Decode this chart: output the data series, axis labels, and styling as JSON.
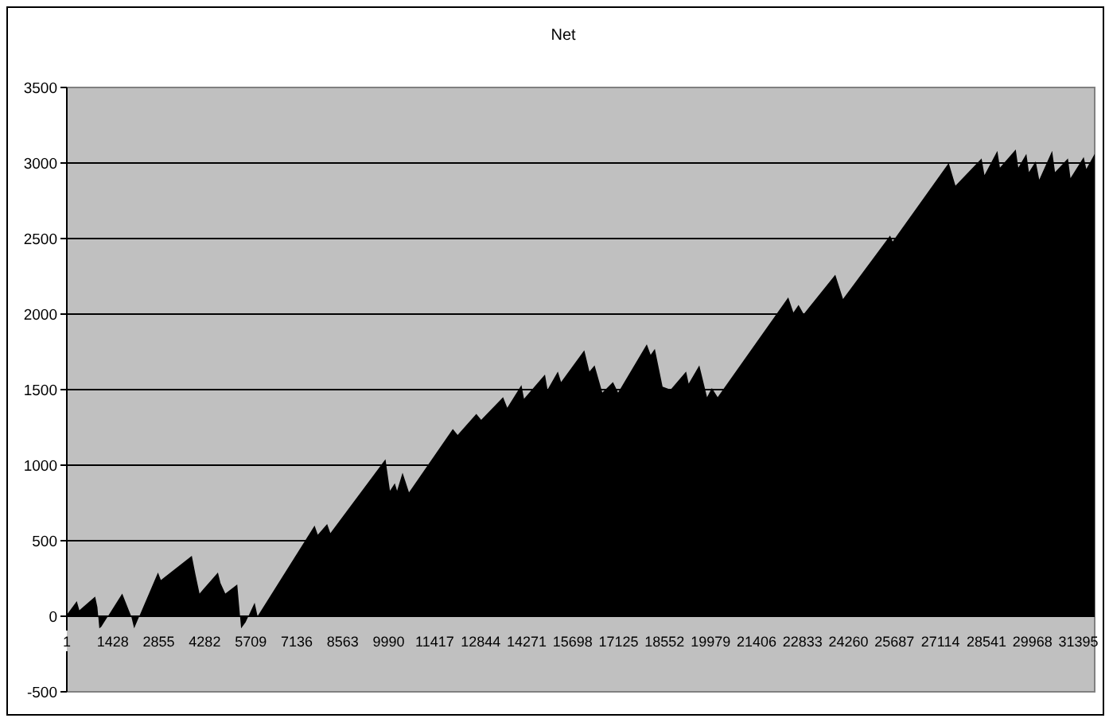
{
  "chart_data": {
    "type": "area",
    "title": "Net",
    "x": [
      1,
      310,
      390,
      880,
      950,
      1010,
      1070,
      1720,
      1850,
      2000,
      2090,
      2190,
      2830,
      2920,
      3880,
      3990,
      4120,
      4690,
      4770,
      4920,
      5290,
      5410,
      5550,
      5830,
      5920,
      7690,
      7790,
      8080,
      8180,
      9890,
      10030,
      10180,
      10250,
      10420,
      10620,
      11980,
      12130,
      12710,
      12860,
      13540,
      13670,
      14110,
      14190,
      14840,
      14920,
      15240,
      15340,
      16060,
      16220,
      16380,
      16620,
      16950,
      17110,
      18000,
      18120,
      18250,
      18490,
      18740,
      19220,
      19300,
      19630,
      19870,
      20020,
      20200,
      22390,
      22550,
      22710,
      22870,
      23850,
      24090,
      25550,
      25630,
      27370,
      27580,
      28390,
      28480,
      28880,
      28960,
      29450,
      29530,
      29780,
      29860,
      30070,
      30180,
      30580,
      30670,
      31070,
      31150,
      31560,
      31640,
      31900
    ],
    "series": [
      {
        "color": "#000000",
        "values": [
          10,
          100,
          40,
          130,
          60,
          -80,
          -70,
          150,
          80,
          0,
          -80,
          -30,
          290,
          240,
          400,
          280,
          150,
          290,
          220,
          150,
          210,
          -80,
          -40,
          90,
          0,
          600,
          540,
          610,
          550,
          1040,
          830,
          880,
          830,
          950,
          820,
          1240,
          1200,
          1340,
          1300,
          1450,
          1380,
          1530,
          1440,
          1600,
          1500,
          1620,
          1550,
          1760,
          1620,
          1660,
          1480,
          1550,
          1480,
          1800,
          1730,
          1770,
          1520,
          1500,
          1620,
          1540,
          1660,
          1450,
          1510,
          1450,
          2110,
          2010,
          2060,
          2000,
          2260,
          2100,
          2520,
          2480,
          3000,
          2850,
          3030,
          2920,
          3080,
          2970,
          3090,
          2970,
          3060,
          2940,
          3010,
          2890,
          3080,
          2940,
          3030,
          2900,
          3040,
          2960,
          3060
        ]
      }
    ],
    "xlim": [
      1,
      31900
    ],
    "xticks": [
      1,
      1428,
      2855,
      4282,
      5709,
      7136,
      8563,
      9990,
      11417,
      12844,
      14271,
      15698,
      17125,
      18552,
      19979,
      21406,
      22833,
      24260,
      25687,
      27114,
      28541,
      29968,
      31395
    ],
    "ylim": [
      -500,
      3500
    ],
    "yticks": [
      -500,
      0,
      500,
      1000,
      1500,
      2000,
      2500,
      3000,
      3500
    ],
    "grid": "y"
  }
}
